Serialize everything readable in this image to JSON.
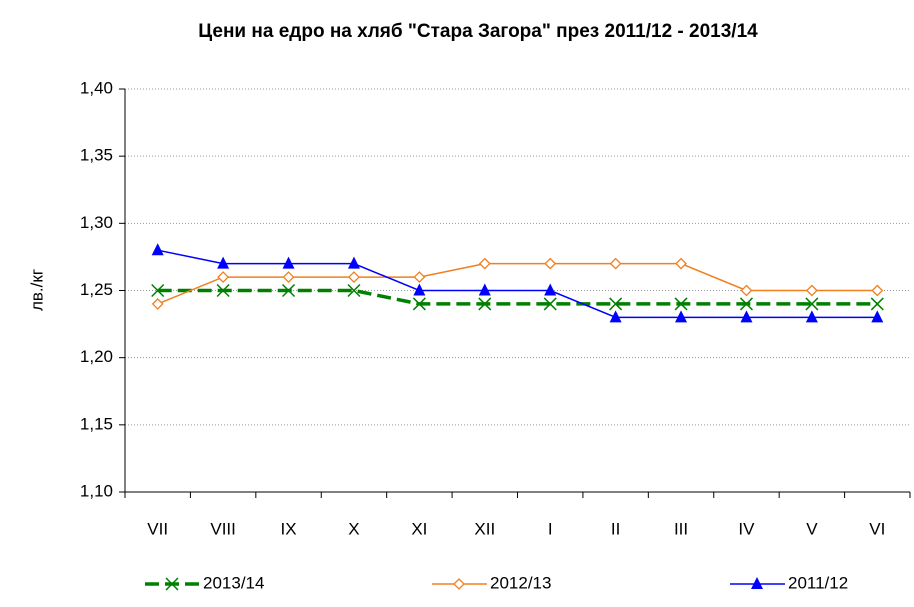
{
  "chart_data": {
    "type": "line",
    "title": "Цени на едро на хляб \"Стара Загора\" през 2011/12 - 2013/14",
    "y_label": "лв./кг",
    "categories": [
      "VII",
      "VIII",
      "IX",
      "X",
      "XI",
      "XII",
      "I",
      "II",
      "III",
      "IV",
      "V",
      "VI"
    ],
    "series": [
      {
        "name": "2013/14",
        "color": "#008000",
        "marker": "x",
        "line_style": "dashed",
        "values": [
          1.25,
          1.25,
          1.25,
          1.25,
          1.24,
          1.24,
          1.24,
          1.24,
          1.24,
          1.24,
          1.24,
          1.24
        ]
      },
      {
        "name": "2012/13",
        "color": "#f07f1e",
        "marker": "diamond",
        "line_style": "solid",
        "values": [
          1.24,
          1.26,
          1.26,
          1.26,
          1.26,
          1.27,
          1.27,
          1.27,
          1.27,
          1.25,
          1.25,
          1.25
        ]
      },
      {
        "name": "2011/12",
        "color": "#0000ff",
        "marker": "triangle",
        "line_style": "solid",
        "values": [
          1.28,
          1.27,
          1.27,
          1.27,
          1.25,
          1.25,
          1.25,
          1.23,
          1.23,
          1.23,
          1.23,
          1.23
        ]
      }
    ],
    "ylim": [
      1.1,
      1.4
    ],
    "yticks": [
      {
        "value": 1.1,
        "label": "1,10"
      },
      {
        "value": 1.15,
        "label": "1,15"
      },
      {
        "value": 1.2,
        "label": "1,20"
      },
      {
        "value": 1.25,
        "label": "1,25"
      },
      {
        "value": 1.3,
        "label": "1,30"
      },
      {
        "value": 1.35,
        "label": "1,35"
      },
      {
        "value": 1.4,
        "label": "1,40"
      }
    ],
    "grid": true,
    "legend": "bottom"
  }
}
